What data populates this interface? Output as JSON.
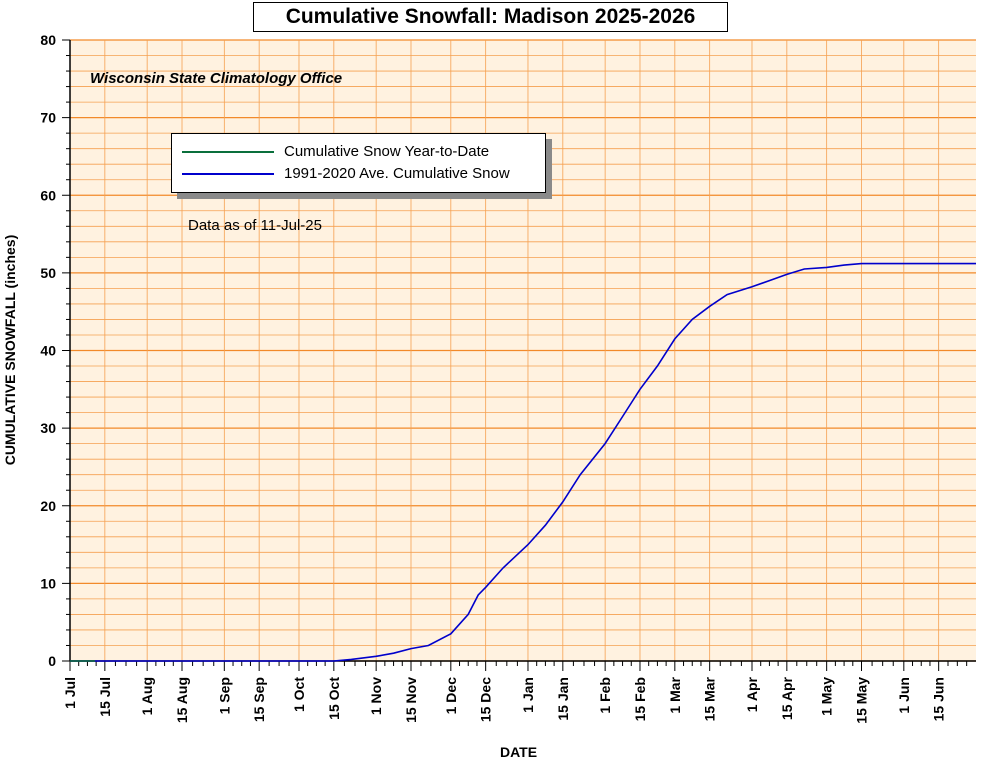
{
  "title": "Cumulative Snowfall: Madison 2025-2026",
  "subtitle": "Wisconsin State Climatology Office",
  "note": "Data as of 11-Jul-25",
  "colors": {
    "background": "#fff2e0",
    "grid": "#f5a050",
    "grid_major": "#f28a2a",
    "series_ytd": "#0a6f3c",
    "series_avg": "#0000cc"
  },
  "chart_data": {
    "type": "line",
    "title": "Cumulative Snowfall: Madison 2025-2026",
    "xlabel": "DATE",
    "ylabel": "CUMULATIVE SNOWFALL (inches)",
    "ylim": [
      0,
      80
    ],
    "xlim": [
      "2025-07-01",
      "2026-06-30"
    ],
    "yticks": [
      0,
      10,
      20,
      30,
      40,
      50,
      60,
      70,
      80
    ],
    "xtick_labels": [
      "1 Jul",
      "15 Jul",
      "1 Aug",
      "15 Aug",
      "1 Sep",
      "15 Sep",
      "1 Oct",
      "15 Oct",
      "1 Nov",
      "15 Nov",
      "1 Dec",
      "15 Dec",
      "1 Jan",
      "15 Jan",
      "1 Feb",
      "15 Feb",
      "1 Mar",
      "15 Mar",
      "1 Apr",
      "15 Apr",
      "1 May",
      "15 May",
      "1 Jun",
      "15 Jun"
    ],
    "xtick_dates": [
      "2025-07-01",
      "2025-07-15",
      "2025-08-01",
      "2025-08-15",
      "2025-09-01",
      "2025-09-15",
      "2025-10-01",
      "2025-10-15",
      "2025-11-01",
      "2025-11-15",
      "2025-12-01",
      "2025-12-15",
      "2026-01-01",
      "2026-01-15",
      "2026-02-01",
      "2026-02-15",
      "2026-03-01",
      "2026-03-15",
      "2026-04-01",
      "2026-04-15",
      "2026-05-01",
      "2026-05-15",
      "2026-06-01",
      "2026-06-15"
    ],
    "grid": true,
    "legend": "upper-left",
    "series": [
      {
        "name": "Cumulative Snow Year-to-Date",
        "color": "#0a6f3c",
        "x": [
          "2025-07-01",
          "2025-07-11"
        ],
        "y": [
          0,
          0
        ]
      },
      {
        "name": "1991-2020 Ave. Cumulative Snow",
        "color": "#0000cc",
        "x": [
          "2025-07-01",
          "2025-10-15",
          "2025-10-22",
          "2025-11-01",
          "2025-11-08",
          "2025-11-15",
          "2025-11-22",
          "2025-12-01",
          "2025-12-08",
          "2025-12-12",
          "2025-12-15",
          "2025-12-22",
          "2026-01-01",
          "2026-01-08",
          "2026-01-15",
          "2026-01-22",
          "2026-02-01",
          "2026-02-08",
          "2026-02-15",
          "2026-02-22",
          "2026-03-01",
          "2026-03-08",
          "2026-03-15",
          "2026-03-22",
          "2026-04-01",
          "2026-04-08",
          "2026-04-15",
          "2026-04-22",
          "2026-05-01",
          "2026-05-08",
          "2026-05-15",
          "2026-06-30"
        ],
        "y": [
          0,
          0,
          0.2,
          0.6,
          1.0,
          1.6,
          2.0,
          3.5,
          6.0,
          8.5,
          9.5,
          12.0,
          15.0,
          17.5,
          20.5,
          24.0,
          28.0,
          31.5,
          35.0,
          38.0,
          41.5,
          44.0,
          45.7,
          47.2,
          48.2,
          49.0,
          49.8,
          50.5,
          50.7,
          51.0,
          51.2,
          51.2
        ]
      }
    ]
  },
  "legend": {
    "items": [
      {
        "label": "Cumulative Snow Year-to-Date",
        "color": "#0a6f3c"
      },
      {
        "label": "1991-2020 Ave. Cumulative Snow",
        "color": "#0000cc"
      }
    ]
  }
}
